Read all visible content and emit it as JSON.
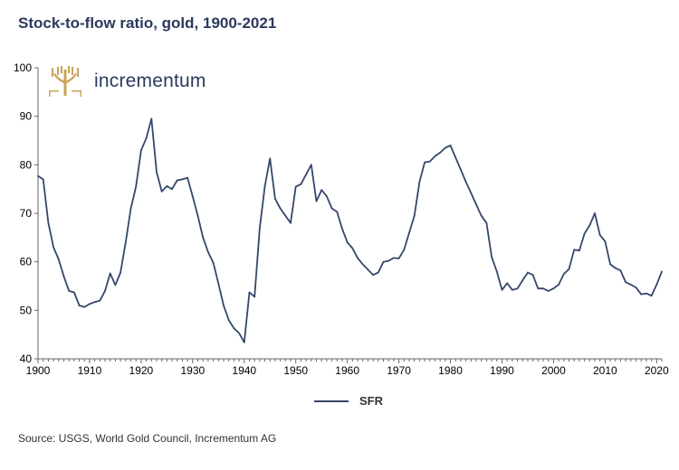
{
  "title": "Stock-to-flow ratio, gold, 1900-2021",
  "logo": {
    "brand": "incrementum",
    "icon": "tree-logo-icon"
  },
  "source": "Source: USGS, World Gold Council, Incrementum AG",
  "colors": {
    "title": "#2b3a5c",
    "line": "#35476b",
    "axis": "#666666",
    "logo_gold": "#c9a45a"
  },
  "chart_data": {
    "type": "line",
    "title": "Stock-to-flow ratio, gold, 1900-2021",
    "xlabel": "",
    "ylabel": "",
    "xlim": [
      1900,
      2021
    ],
    "ylim": [
      40,
      100
    ],
    "yticks": [
      40,
      50,
      60,
      70,
      80,
      90,
      100
    ],
    "xticks": [
      1900,
      1910,
      1920,
      1930,
      1940,
      1950,
      1960,
      1970,
      1980,
      1990,
      2000,
      2010,
      2020
    ],
    "grid": false,
    "legend_position": "bottom",
    "series": [
      {
        "name": "SFR",
        "x": [
          1900,
          1901,
          1902,
          1903,
          1904,
          1905,
          1906,
          1907,
          1908,
          1909,
          1910,
          1911,
          1912,
          1913,
          1914,
          1915,
          1916,
          1917,
          1918,
          1919,
          1920,
          1921,
          1922,
          1923,
          1924,
          1925,
          1926,
          1927,
          1928,
          1929,
          1930,
          1931,
          1932,
          1933,
          1934,
          1935,
          1936,
          1937,
          1938,
          1939,
          1940,
          1941,
          1942,
          1943,
          1944,
          1945,
          1946,
          1947,
          1948,
          1949,
          1950,
          1951,
          1952,
          1953,
          1954,
          1955,
          1956,
          1957,
          1958,
          1959,
          1960,
          1961,
          1962,
          1963,
          1964,
          1965,
          1966,
          1967,
          1968,
          1969,
          1970,
          1971,
          1972,
          1973,
          1974,
          1975,
          1976,
          1977,
          1978,
          1979,
          1980,
          1981,
          1982,
          1983,
          1984,
          1985,
          1986,
          1987,
          1988,
          1989,
          1990,
          1991,
          1992,
          1993,
          1994,
          1995,
          1996,
          1997,
          1998,
          1999,
          2000,
          2001,
          2002,
          2003,
          2004,
          2005,
          2006,
          2007,
          2008,
          2009,
          2010,
          2011,
          2012,
          2013,
          2014,
          2015,
          2016,
          2017,
          2018,
          2019,
          2020,
          2021
        ],
        "values": [
          77.7,
          77.0,
          68.0,
          63.0,
          60.5,
          57.0,
          54.0,
          53.7,
          51.0,
          50.7,
          51.3,
          51.7,
          52.0,
          54.0,
          57.6,
          55.2,
          57.8,
          64.0,
          71.0,
          75.5,
          83.0,
          85.5,
          89.5,
          78.5,
          74.5,
          75.6,
          75.0,
          76.8,
          77.0,
          77.3,
          73.5,
          69.5,
          65.0,
          62.0,
          59.8,
          55.5,
          51.0,
          48.0,
          46.3,
          45.3,
          43.4,
          53.7,
          52.8,
          67.0,
          75.5,
          81.3,
          73.0,
          71.0,
          69.5,
          68.0,
          75.5,
          76.0,
          78.0,
          80.0,
          72.5,
          74.8,
          73.5,
          71.0,
          70.3,
          66.8,
          64.0,
          62.8,
          60.8,
          59.5,
          58.4,
          57.3,
          57.8,
          60.0,
          60.2,
          60.8,
          60.7,
          62.5,
          66.0,
          69.5,
          76.5,
          80.5,
          80.7,
          81.8,
          82.5,
          83.5,
          84.0,
          81.5,
          79.0,
          76.5,
          74.2,
          71.8,
          69.5,
          68.0,
          61.0,
          58.0,
          54.2,
          55.6,
          54.2,
          54.5,
          56.2,
          57.8,
          57.3,
          54.5,
          54.5,
          54.0,
          54.5,
          55.3,
          57.5,
          58.5,
          62.5,
          62.3,
          65.8,
          67.5,
          70.0,
          65.5,
          64.2,
          59.5,
          58.7,
          58.2,
          55.8,
          55.3,
          54.7,
          53.3,
          53.5,
          53.0,
          55.3,
          58.0
        ]
      }
    ]
  },
  "legend": {
    "label": "SFR"
  }
}
